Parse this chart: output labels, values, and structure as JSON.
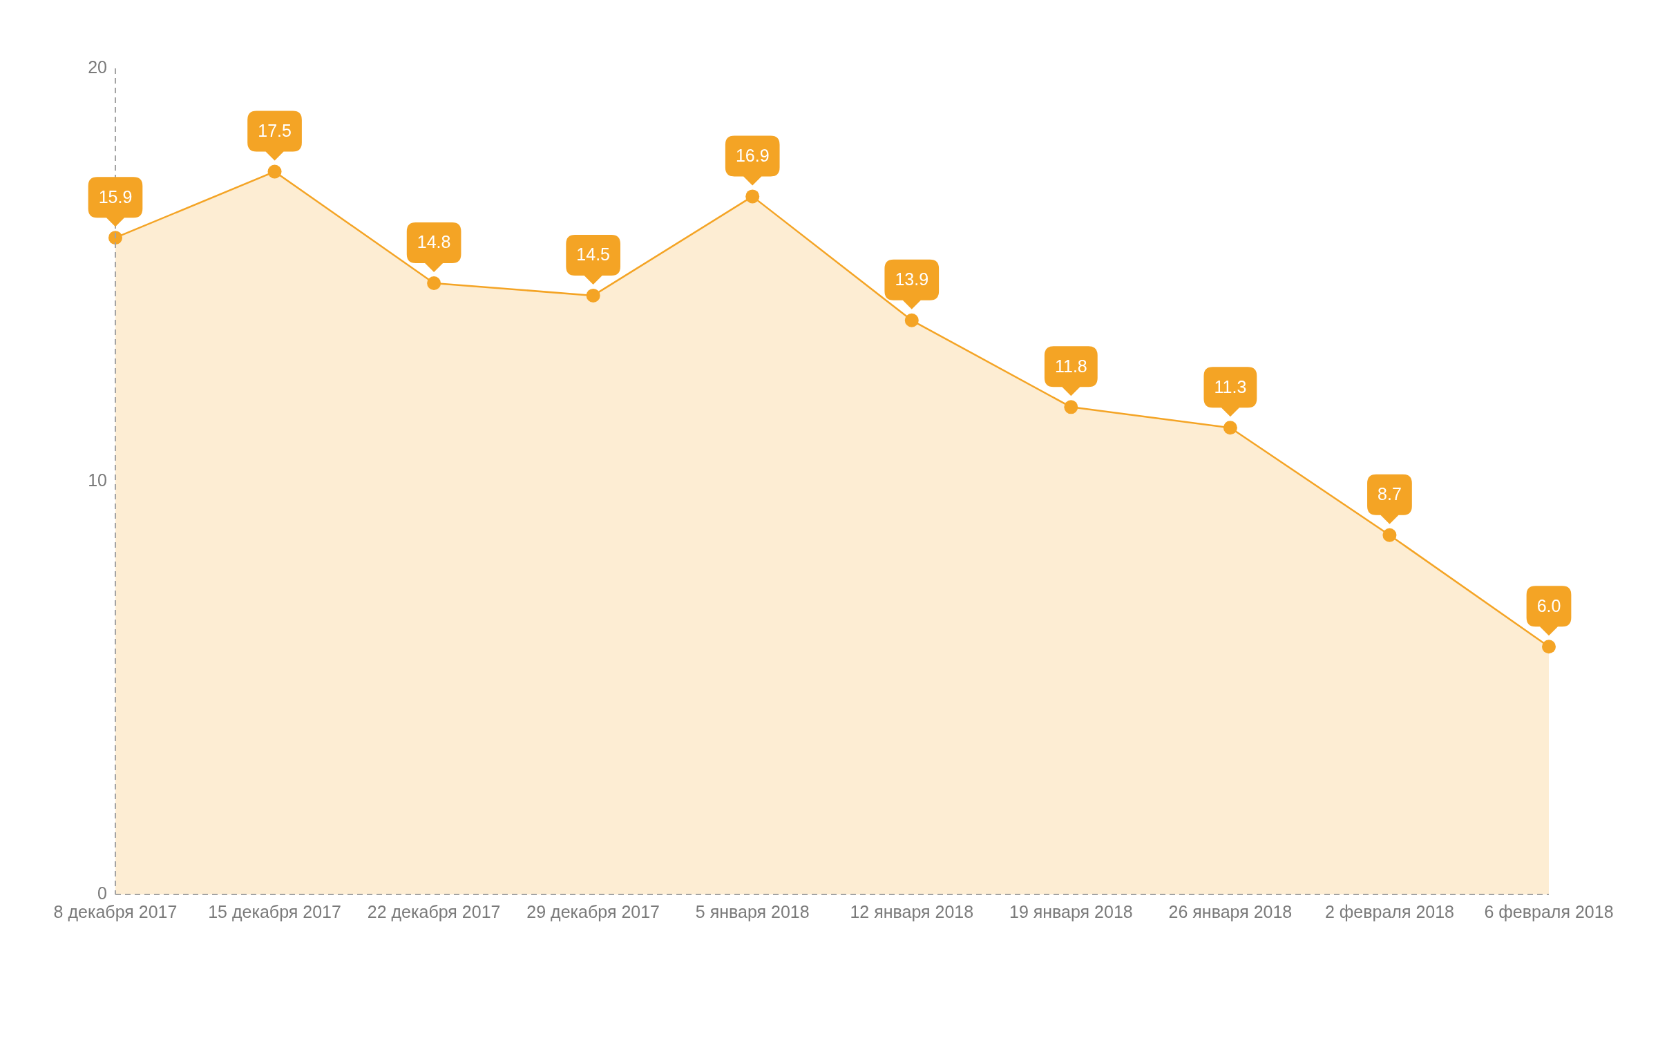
{
  "chart_data": {
    "type": "area",
    "categories": [
      "8 декабря 2017",
      "15 декабря 2017",
      "22 декабря 2017",
      "29 декабря 2017",
      "5 января 2018",
      "12 января 2018",
      "19 января 2018",
      "26 января 2018",
      "2 февраля 2018",
      "6 февраля 2018"
    ],
    "series": [
      {
        "color": "#f4a425",
        "values": [
          15.9,
          17.5,
          14.8,
          14.5,
          16.9,
          13.9,
          11.8,
          11.3,
          8.7,
          6.0
        ],
        "value_labels": [
          "15.9",
          "17.5",
          "14.8",
          "14.5",
          "16.9",
          "13.9",
          "11.8",
          "11.3",
          "8.7",
          "6.0"
        ]
      }
    ],
    "ylim": [
      0,
      20
    ],
    "yticks": [
      0,
      10,
      20
    ],
    "marker": "circle",
    "line_style": "solid"
  }
}
